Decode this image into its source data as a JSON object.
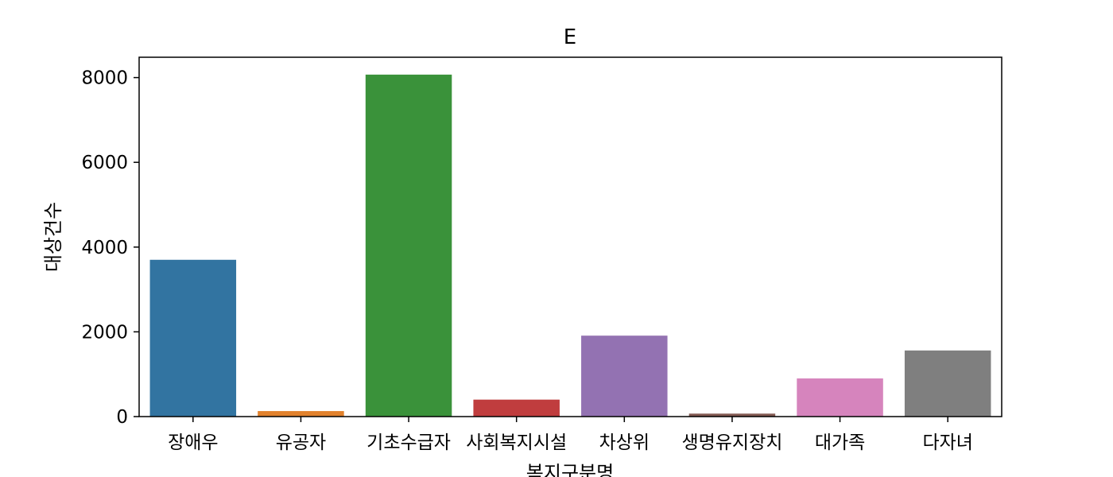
{
  "chart_data": {
    "type": "bar",
    "title": "E",
    "xlabel": "복지구분명",
    "ylabel": "대상건수",
    "categories": [
      "장애우",
      "유공자",
      "기초수급자",
      "사회복지시설",
      "차상위",
      "생명유지장치",
      "대가족",
      "다자녀"
    ],
    "values": [
      3700,
      130,
      8070,
      400,
      1910,
      70,
      900,
      1560
    ],
    "colors": [
      "#3274a1",
      "#e1812c",
      "#3a923a",
      "#c03d3e",
      "#9372b2",
      "#845b53",
      "#d684bd",
      "#7f7f7f"
    ],
    "yticks": [
      0,
      2000,
      4000,
      6000,
      8000
    ],
    "ylim": [
      0,
      8480
    ],
    "grid": false,
    "legend": false
  }
}
